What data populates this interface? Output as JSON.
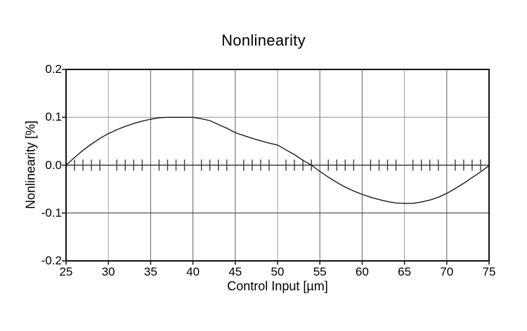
{
  "page": {
    "background": "#ffffff"
  },
  "chart_data": {
    "type": "line",
    "title": "Nonlinearity",
    "xlabel": "Control Input [µm]",
    "ylabel": "Nonlinearity [%]",
    "xlim": [
      25,
      75
    ],
    "ylim": [
      -0.2,
      0.2
    ],
    "x_ticks": [
      25,
      30,
      35,
      40,
      45,
      50,
      55,
      60,
      65,
      70,
      75
    ],
    "x_tick_labels": [
      "25",
      "30",
      "35",
      "40",
      "45",
      "50",
      "55",
      "60",
      "65",
      "70",
      "75"
    ],
    "y_ticks": [
      0.2,
      0.1,
      0,
      -0.1,
      -0.2
    ],
    "y_tick_labels": [
      "0.2",
      "0.1",
      "0.0",
      "-0.1",
      "-0.2"
    ],
    "grid": true,
    "legend": "none",
    "minor_tick_step_x": 1,
    "minor_ticks_on": "zero-line",
    "light_vertical_gridlines": [
      30,
      50,
      65
    ],
    "series": [
      {
        "name": "Nonlinearity",
        "x": [
          25,
          26,
          27,
          28,
          29,
          30,
          31,
          32,
          33,
          34,
          35,
          36,
          37,
          38,
          39,
          40,
          41,
          42,
          43,
          44,
          45,
          46,
          47,
          48,
          49,
          50,
          51,
          52,
          53,
          54,
          55,
          56,
          57,
          58,
          59,
          60,
          61,
          62,
          63,
          64,
          65,
          66,
          67,
          68,
          69,
          70,
          71,
          72,
          73,
          74,
          75
        ],
        "y": [
          0.0,
          0.016,
          0.031,
          0.044,
          0.056,
          0.066,
          0.074,
          0.081,
          0.087,
          0.092,
          0.096,
          0.099,
          0.1,
          0.1,
          0.1,
          0.1,
          0.097,
          0.093,
          0.085,
          0.077,
          0.068,
          0.062,
          0.056,
          0.051,
          0.046,
          0.042,
          0.032,
          0.022,
          0.01,
          0.0,
          -0.013,
          -0.025,
          -0.036,
          -0.046,
          -0.054,
          -0.061,
          -0.067,
          -0.072,
          -0.076,
          -0.079,
          -0.08,
          -0.08,
          -0.077,
          -0.073,
          -0.067,
          -0.059,
          -0.049,
          -0.038,
          -0.026,
          -0.014,
          -0.001
        ]
      }
    ]
  },
  "colors": {
    "background": "#ffffff",
    "curve": "#1a1a1a",
    "border": "#111111",
    "grid_vertical_dark": "#5f5f5f",
    "grid_vertical_light": "#9f9f9f",
    "grid_plus_01": "#8f8f8f",
    "grid_minus_01": "#2f2f2f",
    "zero_line": "#1c1c1c",
    "minor_tick": "#3a3a3a",
    "axis_tick": "#111111",
    "text": "#000000"
  }
}
